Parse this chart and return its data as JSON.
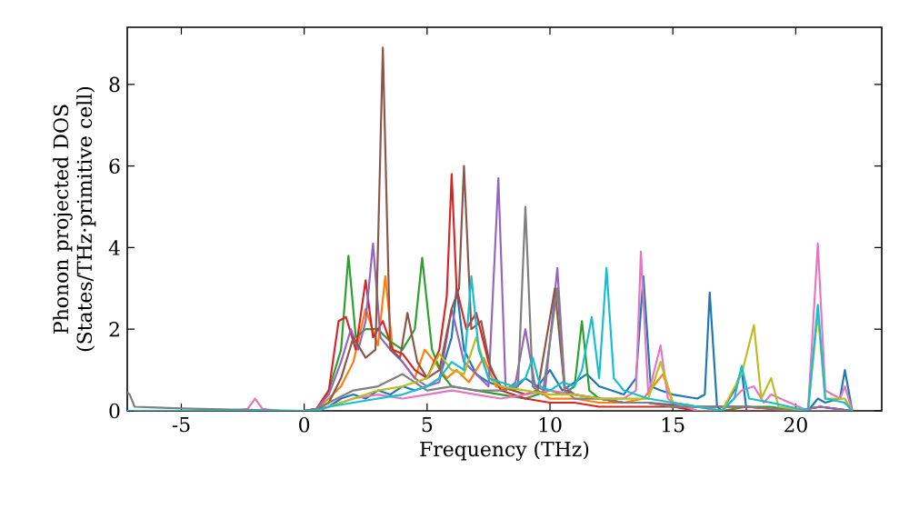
{
  "chart_data": {
    "type": "line",
    "xlabel": "Frequency (THz)",
    "ylabel": "Phonon projected DOS (States/THz·primitive cell)",
    "xlim": [
      -7.2,
      23.5
    ],
    "ylim": [
      0,
      9.4
    ],
    "xticks": [
      -5,
      0,
      5,
      10,
      15,
      20
    ],
    "yticks": [
      0,
      2,
      4,
      6,
      8
    ],
    "grid": false,
    "legend": false,
    "marker": "none",
    "line_style": "solid",
    "series": [
      {
        "color": "#1f77b4",
        "x": [
          0.5,
          1,
          1.5,
          2,
          2.5,
          3,
          3.5,
          4,
          4.5,
          5,
          5.5,
          6,
          6.2,
          6.5,
          7,
          7.5,
          8,
          8.5,
          9,
          9.5,
          10,
          10.5,
          11,
          11.5,
          12,
          12.5,
          13,
          13.5,
          13.8,
          14.1,
          14.5,
          15,
          15.5,
          16,
          16.3,
          16.5,
          16.8,
          17,
          17.5,
          17.8,
          18,
          20.5,
          20.9,
          21.2,
          21.8,
          22,
          22.3
        ],
        "values": [
          0.02,
          0.1,
          0.3,
          0.4,
          0.3,
          0.5,
          0.4,
          0.6,
          0.5,
          0.6,
          0.8,
          1.8,
          3.0,
          1.5,
          0.9,
          0.7,
          0.6,
          0.5,
          0.8,
          0.6,
          1.0,
          0.5,
          0.7,
          0.9,
          0.6,
          0.5,
          0.4,
          0.8,
          3.3,
          0.6,
          0.5,
          0.4,
          0.35,
          0.3,
          0.4,
          2.9,
          0.1,
          0,
          0.5,
          1.0,
          0,
          0,
          0.3,
          0.2,
          0.3,
          1.0,
          0
        ]
      },
      {
        "color": "#ff7f0e",
        "x": [
          -7.2,
          0,
          0.5,
          1,
          1.5,
          2,
          2.5,
          3,
          3.3,
          3.6,
          4,
          4.5,
          4.9,
          5.3,
          5.8,
          6.2,
          6.7,
          7.3,
          7.8,
          8.5,
          9,
          9.5,
          10,
          11,
          12,
          13,
          13.8,
          14.6,
          15,
          16
        ],
        "values": [
          0,
          0,
          0.05,
          0.3,
          0.6,
          1.2,
          2.5,
          1.6,
          3.3,
          1.5,
          1.2,
          0.8,
          1.5,
          1.2,
          0.8,
          1.0,
          0.7,
          1.3,
          0.6,
          0.5,
          0.4,
          0.5,
          0.3,
          0.3,
          0.2,
          0.2,
          0.3,
          0.9,
          0.2,
          0.1
        ]
      },
      {
        "color": "#2ca02c",
        "x": [
          0.5,
          1,
          1.5,
          1.8,
          2.1,
          2.5,
          3.0,
          3.5,
          4,
          4.5,
          4.8,
          5.2,
          5.6,
          6,
          7,
          8,
          9,
          10,
          10.5,
          11,
          11.3,
          11.6,
          12,
          13,
          14,
          15,
          16,
          17,
          18,
          19,
          20,
          21,
          22.3
        ],
        "values": [
          0.05,
          0.5,
          1.5,
          3.8,
          1.8,
          2.0,
          2.0,
          1.7,
          1.5,
          2.0,
          3.75,
          1.5,
          0.9,
          0.6,
          0.5,
          0.4,
          0.3,
          0.5,
          0.4,
          0.6,
          2.2,
          0.5,
          0.3,
          0.2,
          0.2,
          0.1,
          0.1,
          0,
          0.1,
          0.1,
          0,
          0.1,
          0
        ]
      },
      {
        "color": "#d62728",
        "x": [
          -7.2,
          0,
          0.5,
          1,
          1.4,
          1.7,
          2.1,
          2.5,
          2.8,
          3.2,
          3.6,
          4,
          4.5,
          5,
          5.5,
          5.8,
          6.0,
          6.2,
          6.6,
          7,
          7.5,
          8,
          9,
          10,
          11,
          12,
          13,
          14,
          15,
          16,
          18,
          20,
          21,
          22.3
        ],
        "values": [
          0,
          0,
          0.05,
          0.5,
          2.2,
          2.3,
          1.5,
          3.2,
          1.8,
          2.2,
          1.5,
          1.4,
          1.0,
          0.8,
          1.5,
          2.8,
          5.8,
          3.0,
          2.0,
          2.4,
          1.2,
          0.5,
          0.3,
          0.2,
          0.2,
          0.1,
          0.1,
          0.1,
          0.1,
          0,
          0,
          0,
          0.1,
          0
        ]
      },
      {
        "color": "#9467bd",
        "x": [
          -7.2,
          0,
          0.5,
          1,
          1.5,
          1.9,
          2.2,
          2.5,
          2.8,
          3.1,
          3.5,
          4,
          4.5,
          5,
          5.5,
          6,
          6.5,
          7,
          7.5,
          7.9,
          8.2,
          8.6,
          9.0,
          9.4,
          9.8,
          10.3,
          10.6,
          11,
          12,
          13,
          14,
          15,
          16,
          18,
          20,
          21,
          22.3
        ],
        "values": [
          0,
          0,
          0.05,
          0.4,
          1.2,
          2.0,
          1.5,
          2.2,
          4.1,
          1.8,
          1.5,
          1.2,
          0.8,
          0.6,
          0.7,
          2.5,
          1.2,
          0.9,
          0.6,
          5.7,
          0.5,
          0.7,
          2.0,
          0.6,
          0.5,
          3.5,
          0.6,
          0.4,
          0.3,
          0.2,
          0.2,
          0.1,
          0.1,
          0.1,
          0,
          0.1,
          0
        ]
      },
      {
        "color": "#8c564b",
        "x": [
          -7.2,
          0,
          0.5,
          1,
          1.5,
          2,
          2.5,
          2.9,
          3.2,
          3.5,
          3.9,
          4.2,
          4.6,
          5,
          5.5,
          6,
          6.3,
          6.5,
          6.8,
          7.2,
          7.6,
          8,
          8.5,
          9,
          9.5,
          10.2,
          10.6,
          11,
          12,
          13,
          14,
          16,
          18,
          20,
          22.3
        ],
        "values": [
          0,
          0,
          0.02,
          0.2,
          0.8,
          1.8,
          1.3,
          1.5,
          8.9,
          1.5,
          1.3,
          2.4,
          1.2,
          0.8,
          1.0,
          2.5,
          3.0,
          6.0,
          2.0,
          2.2,
          1.0,
          0.6,
          0.5,
          0.4,
          0.5,
          3.0,
          0.5,
          0.4,
          0.3,
          0.2,
          0.2,
          0.1,
          0.1,
          0,
          0
        ]
      },
      {
        "color": "#e377c2",
        "x": [
          -7.2,
          -3,
          -2.3,
          -2.0,
          -1.7,
          -1,
          0,
          0.5,
          1,
          2,
          3,
          4,
          5,
          6,
          7,
          8,
          9,
          10,
          11,
          12,
          13,
          13.5,
          13.7,
          14,
          14.5,
          14.8,
          15,
          16,
          17,
          17.8,
          18.3,
          18.7,
          19,
          20.5,
          20.9,
          21.2,
          21.8,
          22,
          22.3
        ],
        "values": [
          0,
          0,
          0.05,
          0.3,
          0.05,
          0,
          0,
          0,
          0.1,
          0.3,
          0.4,
          0.3,
          0.4,
          0.5,
          0.4,
          0.3,
          0.4,
          0.5,
          0.4,
          0.3,
          0.3,
          0.5,
          3.9,
          0.4,
          1.6,
          0.3,
          0.2,
          0,
          0,
          0.5,
          0.6,
          0.2,
          0.4,
          0,
          4.1,
          0.5,
          0.3,
          0.6,
          0
        ]
      },
      {
        "color": "#7f7f7f",
        "x": [
          -7.2,
          -7.1,
          -6.9,
          -6,
          -5,
          -3,
          0,
          0.5,
          1,
          2,
          3,
          4,
          5,
          6,
          7,
          8,
          8.7,
          9.0,
          9.3,
          9.7,
          10.3,
          10.6,
          11,
          12,
          13,
          14,
          15,
          16,
          18,
          20,
          22.3
        ],
        "values": [
          0.45,
          0.4,
          0.1,
          0.08,
          0.06,
          0.03,
          0,
          0.05,
          0.2,
          0.5,
          0.6,
          0.9,
          0.5,
          0.6,
          0.5,
          0.5,
          0.6,
          5.0,
          0.6,
          0.4,
          3.0,
          0.5,
          0.3,
          0.3,
          0.2,
          0.2,
          0.1,
          0.1,
          0.1,
          0,
          0
        ]
      },
      {
        "color": "#bcbd22",
        "x": [
          0.5,
          1,
          2,
          3,
          4,
          5,
          5.5,
          6,
          6.5,
          7,
          7.5,
          8,
          9,
          10,
          11,
          12,
          13,
          14,
          14.5,
          15,
          16,
          17,
          17.8,
          18.3,
          18.6,
          19.0,
          19.3,
          20.5,
          20.9,
          21.2,
          22,
          22.3
        ],
        "values": [
          0,
          0.1,
          0.3,
          0.5,
          0.6,
          0.8,
          1.4,
          1.0,
          0.9,
          1.8,
          0.8,
          0.6,
          0.5,
          0.4,
          0.4,
          0.3,
          0.3,
          0.3,
          1.2,
          0.2,
          0.1,
          0,
          0.9,
          2.1,
          0.3,
          0.8,
          0.1,
          0,
          2.4,
          0.3,
          0.3,
          0
        ]
      },
      {
        "color": "#17becf",
        "x": [
          -7.2,
          0,
          0.5,
          1,
          2,
          3,
          4,
          5,
          5.5,
          6,
          6.5,
          6.8,
          7.1,
          7.5,
          8,
          8.5,
          9,
          9.3,
          9.6,
          10,
          10.5,
          11,
          11.3,
          11.7,
          12,
          12.3,
          12.6,
          13,
          13.5,
          14,
          15,
          16,
          17,
          17.5,
          17.8,
          18.1,
          19,
          20.5,
          20.9,
          21.2,
          22,
          22.3
        ],
        "values": [
          0,
          0,
          0,
          0.1,
          0.2,
          0.3,
          0.4,
          0.6,
          0.8,
          1.2,
          1.0,
          3.3,
          1.5,
          0.8,
          0.7,
          0.6,
          0.8,
          1.3,
          0.6,
          0.5,
          0.7,
          0.6,
          1.0,
          2.3,
          0.8,
          3.5,
          0.8,
          0.5,
          0.4,
          0.3,
          0.2,
          0.1,
          0,
          0.3,
          1.1,
          0.3,
          0.2,
          0,
          2.6,
          0.3,
          0.2,
          0
        ]
      }
    ]
  }
}
